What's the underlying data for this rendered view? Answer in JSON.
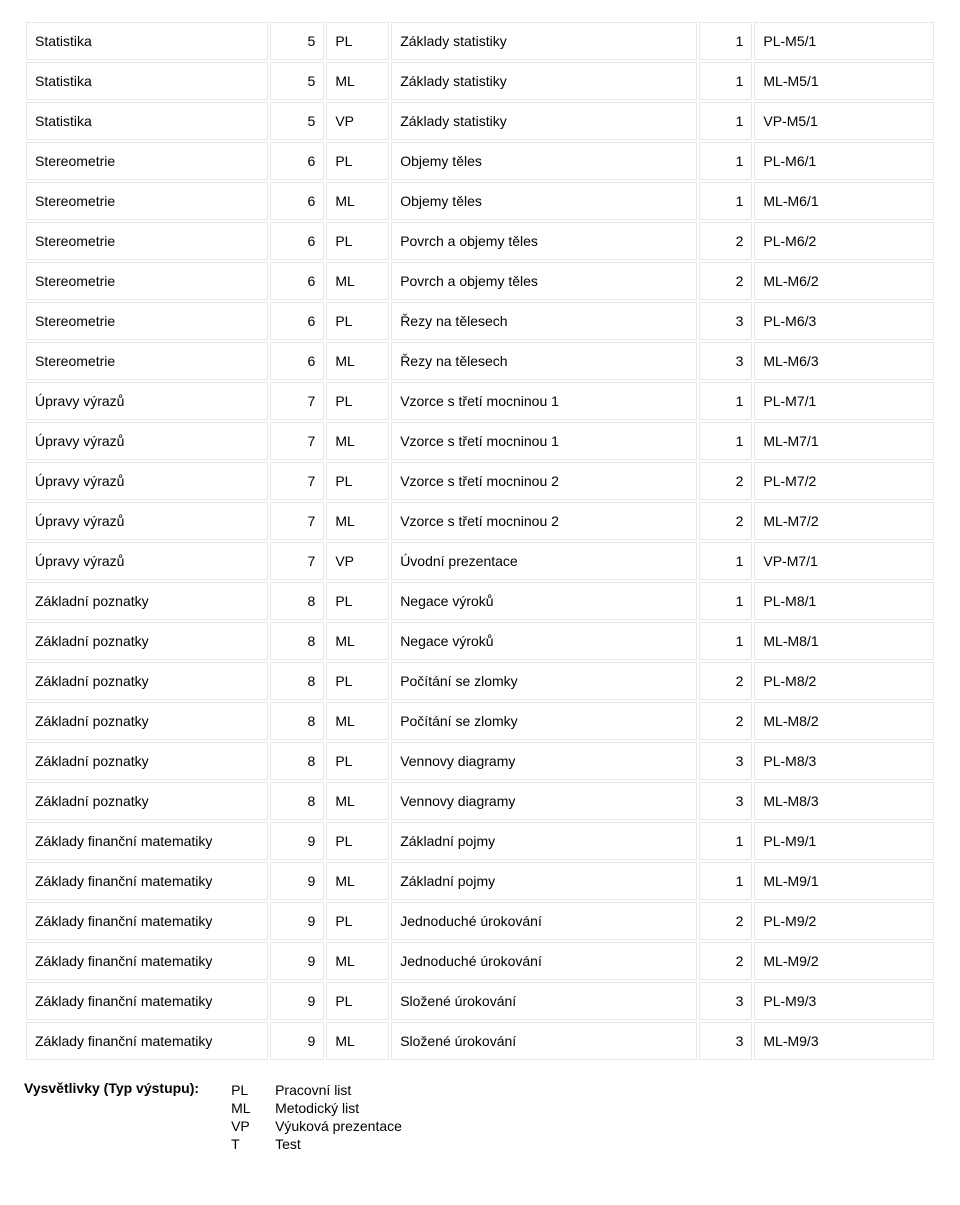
{
  "table": {
    "rows": [
      [
        "Statistika",
        "5",
        "PL",
        "Základy statistiky",
        "1",
        "PL-M5/1"
      ],
      [
        "Statistika",
        "5",
        "ML",
        "Základy statistiky",
        "1",
        "ML-M5/1"
      ],
      [
        "Statistika",
        "5",
        "VP",
        "Základy statistiky",
        "1",
        "VP-M5/1"
      ],
      [
        "Stereometrie",
        "6",
        "PL",
        "Objemy těles",
        "1",
        "PL-M6/1"
      ],
      [
        "Stereometrie",
        "6",
        "ML",
        "Objemy těles",
        "1",
        "ML-M6/1"
      ],
      [
        "Stereometrie",
        "6",
        "PL",
        "Povrch a objemy těles",
        "2",
        "PL-M6/2"
      ],
      [
        "Stereometrie",
        "6",
        "ML",
        "Povrch a objemy těles",
        "2",
        "ML-M6/2"
      ],
      [
        "Stereometrie",
        "6",
        "PL",
        "Řezy na tělesech",
        "3",
        "PL-M6/3"
      ],
      [
        "Stereometrie",
        "6",
        "ML",
        "Řezy na tělesech",
        "3",
        "ML-M6/3"
      ],
      [
        "Úpravy výrazů",
        "7",
        "PL",
        "Vzorce s třetí mocninou 1",
        "1",
        "PL-M7/1"
      ],
      [
        "Úpravy výrazů",
        "7",
        "ML",
        "Vzorce s třetí mocninou 1",
        "1",
        "ML-M7/1"
      ],
      [
        "Úpravy výrazů",
        "7",
        "PL",
        "Vzorce s třetí mocninou 2",
        "2",
        "PL-M7/2"
      ],
      [
        "Úpravy výrazů",
        "7",
        "ML",
        "Vzorce s třetí mocninou 2",
        "2",
        "ML-M7/2"
      ],
      [
        "Úpravy výrazů",
        "7",
        "VP",
        "Úvodní prezentace",
        "1",
        "VP-M7/1"
      ],
      [
        "Základní poznatky",
        "8",
        "PL",
        "Negace výroků",
        "1",
        "PL-M8/1"
      ],
      [
        "Základní poznatky",
        "8",
        "ML",
        "Negace výroků",
        "1",
        "ML-M8/1"
      ],
      [
        "Základní poznatky",
        "8",
        "PL",
        "Počítání se zlomky",
        "2",
        "PL-M8/2"
      ],
      [
        "Základní poznatky",
        "8",
        "ML",
        "Počítání se zlomky",
        "2",
        "ML-M8/2"
      ],
      [
        "Základní poznatky",
        "8",
        "PL",
        "Vennovy diagramy",
        "3",
        "PL-M8/3"
      ],
      [
        "Základní poznatky",
        "8",
        "ML",
        "Vennovy diagramy",
        "3",
        "ML-M8/3"
      ],
      [
        "Základy finanční matematiky",
        "9",
        "PL",
        "Základní pojmy",
        "1",
        "PL-M9/1"
      ],
      [
        "Základy finanční matematiky",
        "9",
        "ML",
        "Základní pojmy",
        "1",
        "ML-M9/1"
      ],
      [
        "Základy finanční matematiky",
        "9",
        "PL",
        "Jednoduché úrokování",
        "2",
        "PL-M9/2"
      ],
      [
        "Základy finanční matematiky",
        "9",
        "ML",
        "Jednoduché úrokování",
        "2",
        "ML-M9/2"
      ],
      [
        "Základy finanční matematiky",
        "9",
        "PL",
        "Složené úrokování",
        "3",
        "PL-M9/3"
      ],
      [
        "Základy finanční matematiky",
        "9",
        "ML",
        "Složené úrokování",
        "3",
        "ML-M9/3"
      ]
    ]
  },
  "legend": {
    "title": "Vysvětlivky (Typ výstupu):",
    "items": [
      {
        "code": "PL",
        "desc": "Pracovní list"
      },
      {
        "code": "ML",
        "desc": "Metodický list"
      },
      {
        "code": "VP",
        "desc": "Výuková prezentace"
      },
      {
        "code": "T",
        "desc": "Test"
      }
    ]
  }
}
